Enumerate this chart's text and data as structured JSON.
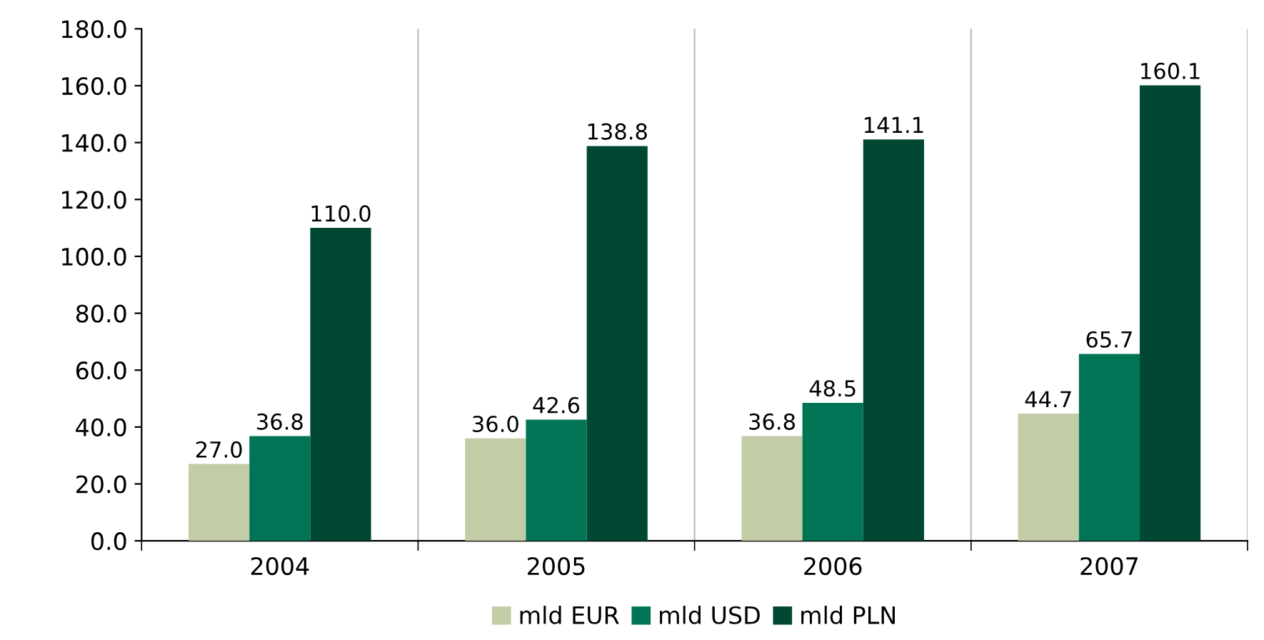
{
  "chart_data": {
    "type": "bar",
    "categories": [
      "2004",
      "2005",
      "2006",
      "2007"
    ],
    "series": [
      {
        "name": "mld EUR",
        "color": "#c2cca6",
        "values": [
          27.0,
          36.0,
          36.8,
          44.7
        ],
        "value_labels": [
          "27.0",
          "36.0",
          "36.8",
          "44.7"
        ]
      },
      {
        "name": "mld USD",
        "color": "#007455",
        "values": [
          36.8,
          42.6,
          48.5,
          65.7
        ],
        "value_labels": [
          "36.8",
          "42.6",
          "48.5",
          "65.7"
        ]
      },
      {
        "name": "mld PLN",
        "color": "#004833",
        "values": [
          110.0,
          138.8,
          141.1,
          160.1
        ],
        "value_labels": [
          "110.0",
          "138.8",
          "141.1",
          "160.1"
        ]
      }
    ],
    "ylim": [
      0,
      180
    ],
    "yticks": [
      {
        "value": 0,
        "label": "0.0"
      },
      {
        "value": 20,
        "label": "20.0"
      },
      {
        "value": 40,
        "label": "40.0"
      },
      {
        "value": 60,
        "label": "60.0"
      },
      {
        "value": 80,
        "label": "80.0"
      },
      {
        "value": 100,
        "label": "100.0"
      },
      {
        "value": 120,
        "label": "120.0"
      },
      {
        "value": 140,
        "label": "140.0"
      },
      {
        "value": 160,
        "label": "160.0"
      },
      {
        "value": 180,
        "label": "180.0"
      }
    ],
    "grid": "x",
    "legend": "bottom"
  }
}
